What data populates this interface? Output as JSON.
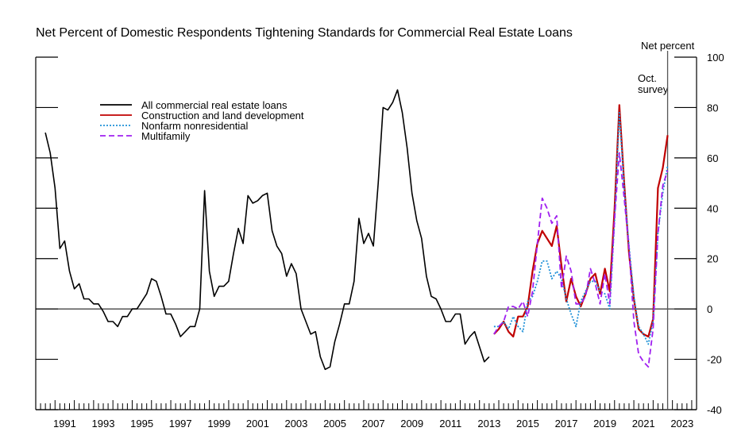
{
  "chart_data": {
    "type": "line",
    "title": "Net Percent of Domestic Respondents Tightening Standards for Commercial Real Estate Loans",
    "ylabel": "Net percent",
    "ylim": [
      -40,
      100
    ],
    "yticks": [
      100,
      80,
      60,
      40,
      20,
      0,
      -20,
      -40
    ],
    "xlim": [
      1990.0,
      2024.25
    ],
    "xticks": [
      "1991",
      "1993",
      "1995",
      "1997",
      "1999",
      "2001",
      "2003",
      "2005",
      "2007",
      "2009",
      "2011",
      "2013",
      "2015",
      "2017",
      "2019",
      "2021",
      "2023"
    ],
    "reference_line": {
      "x": 2022.75,
      "label_line1": "Oct.",
      "label_line2": "survey"
    },
    "legend": {
      "position": "top-left"
    },
    "series": [
      {
        "name": "All commercial real estate loans",
        "color": "#000000",
        "style": "solid",
        "points": [
          [
            1990.5,
            70
          ],
          [
            1990.75,
            62
          ],
          [
            1991.0,
            48
          ],
          [
            1991.25,
            24
          ],
          [
            1991.5,
            27
          ],
          [
            1991.75,
            15
          ],
          [
            1992.0,
            8
          ],
          [
            1992.25,
            10
          ],
          [
            1992.5,
            4
          ],
          [
            1992.75,
            4
          ],
          [
            1993.0,
            2
          ],
          [
            1993.25,
            2
          ],
          [
            1993.5,
            -1
          ],
          [
            1993.75,
            -5
          ],
          [
            1994.0,
            -5
          ],
          [
            1994.25,
            -7
          ],
          [
            1994.5,
            -3
          ],
          [
            1994.75,
            -3
          ],
          [
            1995.0,
            0
          ],
          [
            1995.25,
            0
          ],
          [
            1995.5,
            3
          ],
          [
            1995.75,
            6
          ],
          [
            1996.0,
            12
          ],
          [
            1996.25,
            11
          ],
          [
            1996.5,
            5
          ],
          [
            1996.75,
            -2
          ],
          [
            1997.0,
            -2
          ],
          [
            1997.25,
            -6
          ],
          [
            1997.5,
            -11
          ],
          [
            1997.75,
            -9
          ],
          [
            1998.0,
            -7
          ],
          [
            1998.25,
            -7
          ],
          [
            1998.5,
            0
          ],
          [
            1998.75,
            47
          ],
          [
            1999.0,
            15
          ],
          [
            1999.25,
            5
          ],
          [
            1999.5,
            9
          ],
          [
            1999.75,
            9
          ],
          [
            2000.0,
            11
          ],
          [
            2000.25,
            22
          ],
          [
            2000.5,
            32
          ],
          [
            2000.75,
            26
          ],
          [
            2001.0,
            45
          ],
          [
            2001.25,
            42
          ],
          [
            2001.5,
            43
          ],
          [
            2001.75,
            45
          ],
          [
            2002.0,
            46
          ],
          [
            2002.25,
            31
          ],
          [
            2002.5,
            25
          ],
          [
            2002.75,
            22
          ],
          [
            2003.0,
            13
          ],
          [
            2003.25,
            18
          ],
          [
            2003.5,
            14
          ],
          [
            2003.75,
            0
          ],
          [
            2004.0,
            -5
          ],
          [
            2004.25,
            -10
          ],
          [
            2004.5,
            -9
          ],
          [
            2004.75,
            -19
          ],
          [
            2005.0,
            -24
          ],
          [
            2005.25,
            -23
          ],
          [
            2005.5,
            -13
          ],
          [
            2005.75,
            -6
          ],
          [
            2006.0,
            2
          ],
          [
            2006.25,
            2
          ],
          [
            2006.5,
            11
          ],
          [
            2006.75,
            36
          ],
          [
            2007.0,
            26
          ],
          [
            2007.25,
            30
          ],
          [
            2007.5,
            25
          ],
          [
            2007.75,
            50
          ],
          [
            2008.0,
            80
          ],
          [
            2008.25,
            79
          ],
          [
            2008.5,
            82
          ],
          [
            2008.75,
            87
          ],
          [
            2009.0,
            78
          ],
          [
            2009.25,
            64
          ],
          [
            2009.5,
            46
          ],
          [
            2009.75,
            35
          ],
          [
            2010.0,
            28
          ],
          [
            2010.25,
            13
          ],
          [
            2010.5,
            5
          ],
          [
            2010.75,
            4
          ],
          [
            2011.0,
            0
          ],
          [
            2011.25,
            -5
          ],
          [
            2011.5,
            -5
          ],
          [
            2011.75,
            -2
          ],
          [
            2012.0,
            -2
          ],
          [
            2012.25,
            -14
          ],
          [
            2012.5,
            -11
          ],
          [
            2012.75,
            -9
          ],
          [
            2013.0,
            -15
          ],
          [
            2013.25,
            -21
          ],
          [
            2013.5,
            -19
          ]
        ]
      },
      {
        "name": "Construction and land development",
        "color": "#c00000",
        "style": "solid",
        "points": [
          [
            2013.75,
            -10
          ],
          [
            2014.0,
            -8
          ],
          [
            2014.25,
            -5
          ],
          [
            2014.5,
            -9
          ],
          [
            2014.75,
            -11
          ],
          [
            2015.0,
            -3
          ],
          [
            2015.25,
            -3
          ],
          [
            2015.5,
            1
          ],
          [
            2015.75,
            15
          ],
          [
            2016.0,
            26
          ],
          [
            2016.25,
            31
          ],
          [
            2016.5,
            28
          ],
          [
            2016.75,
            25
          ],
          [
            2017.0,
            33
          ],
          [
            2017.25,
            17
          ],
          [
            2017.5,
            3
          ],
          [
            2017.75,
            12
          ],
          [
            2018.0,
            5
          ],
          [
            2018.25,
            1
          ],
          [
            2018.5,
            6
          ],
          [
            2018.75,
            12
          ],
          [
            2019.0,
            14
          ],
          [
            2019.25,
            6
          ],
          [
            2019.5,
            16
          ],
          [
            2019.75,
            7
          ],
          [
            2020.0,
            40
          ],
          [
            2020.25,
            81
          ],
          [
            2020.5,
            50
          ],
          [
            2020.75,
            22
          ],
          [
            2021.0,
            4
          ],
          [
            2021.25,
            -8
          ],
          [
            2021.5,
            -10
          ],
          [
            2021.75,
            -11
          ],
          [
            2022.0,
            -4
          ],
          [
            2022.25,
            48
          ],
          [
            2022.5,
            56
          ],
          [
            2022.75,
            69
          ]
        ]
      },
      {
        "name": "Nonfarm nonresidential",
        "color": "#1e90d8",
        "style": "dotted",
        "points": [
          [
            2013.75,
            -7
          ],
          [
            2014.0,
            -7
          ],
          [
            2014.25,
            -5
          ],
          [
            2014.5,
            -8
          ],
          [
            2014.75,
            -3
          ],
          [
            2015.0,
            -7
          ],
          [
            2015.25,
            -9
          ],
          [
            2015.5,
            3
          ],
          [
            2015.75,
            5
          ],
          [
            2016.0,
            11
          ],
          [
            2016.25,
            19
          ],
          [
            2016.5,
            19
          ],
          [
            2016.75,
            12
          ],
          [
            2017.0,
            15
          ],
          [
            2017.25,
            12
          ],
          [
            2017.5,
            4
          ],
          [
            2017.75,
            -2
          ],
          [
            2018.0,
            -7
          ],
          [
            2018.25,
            3
          ],
          [
            2018.5,
            7
          ],
          [
            2018.75,
            11
          ],
          [
            2019.0,
            11
          ],
          [
            2019.25,
            7
          ],
          [
            2019.5,
            6
          ],
          [
            2019.75,
            0
          ],
          [
            2020.0,
            35
          ],
          [
            2020.25,
            78
          ],
          [
            2020.5,
            48
          ],
          [
            2020.75,
            25
          ],
          [
            2021.0,
            5
          ],
          [
            2021.25,
            -7
          ],
          [
            2021.5,
            -10
          ],
          [
            2021.75,
            -14
          ],
          [
            2022.0,
            -5
          ],
          [
            2022.25,
            30
          ],
          [
            2022.5,
            46
          ],
          [
            2022.75,
            57
          ]
        ]
      },
      {
        "name": "Multifamily",
        "color": "#a020f0",
        "style": "dashed",
        "points": [
          [
            2013.75,
            -10
          ],
          [
            2014.0,
            -7
          ],
          [
            2014.25,
            -5
          ],
          [
            2014.5,
            1
          ],
          [
            2014.75,
            1
          ],
          [
            2015.0,
            0
          ],
          [
            2015.25,
            3
          ],
          [
            2015.5,
            -3
          ],
          [
            2015.75,
            7
          ],
          [
            2016.0,
            26
          ],
          [
            2016.25,
            44
          ],
          [
            2016.5,
            40
          ],
          [
            2016.75,
            34
          ],
          [
            2017.0,
            37
          ],
          [
            2017.25,
            8
          ],
          [
            2017.5,
            21
          ],
          [
            2017.75,
            15
          ],
          [
            2018.0,
            2
          ],
          [
            2018.25,
            2
          ],
          [
            2018.5,
            5
          ],
          [
            2018.75,
            16
          ],
          [
            2019.0,
            10
          ],
          [
            2019.25,
            2
          ],
          [
            2019.5,
            14
          ],
          [
            2019.75,
            2
          ],
          [
            2020.0,
            36
          ],
          [
            2020.25,
            62
          ],
          [
            2020.5,
            44
          ],
          [
            2020.75,
            24
          ],
          [
            2021.0,
            -5
          ],
          [
            2021.25,
            -18
          ],
          [
            2021.5,
            -21
          ],
          [
            2021.75,
            -23
          ],
          [
            2022.0,
            -8
          ],
          [
            2022.25,
            30
          ],
          [
            2022.5,
            49
          ],
          [
            2022.75,
            55
          ]
        ]
      }
    ]
  }
}
